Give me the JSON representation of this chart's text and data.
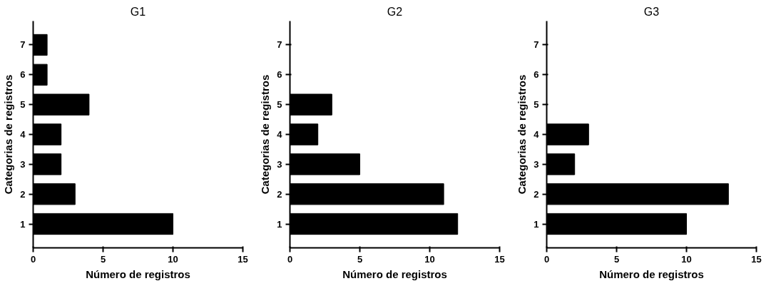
{
  "chart_data": [
    {
      "type": "bar",
      "orientation": "horizontal",
      "title": "G1",
      "xlabel": "Número de registros",
      "ylabel": "Categorias de registros",
      "categories": [
        "7",
        "6",
        "5",
        "4",
        "3",
        "2",
        "1"
      ],
      "values": [
        1,
        1,
        4,
        2,
        2,
        3,
        10
      ],
      "color": "#000000",
      "xlim": [
        0,
        15
      ],
      "xticks": [
        0,
        5,
        10,
        15
      ],
      "grid": false
    },
    {
      "type": "bar",
      "orientation": "horizontal",
      "title": "G2",
      "xlabel": "Número de registros",
      "ylabel": "Categorias de registros",
      "categories": [
        "7",
        "6",
        "5",
        "4",
        "3",
        "2",
        "1"
      ],
      "values": [
        null,
        null,
        3,
        2,
        5,
        11,
        12
      ],
      "color": "#000000",
      "xlim": [
        0,
        15
      ],
      "xticks": [
        0,
        5,
        10,
        15
      ],
      "grid": false
    },
    {
      "type": "bar",
      "orientation": "horizontal",
      "title": "G3",
      "xlabel": "Número de registros",
      "ylabel": "Categorias de registros",
      "categories": [
        "7",
        "6",
        "5",
        "4",
        "3",
        "2",
        "1"
      ],
      "values": [
        null,
        null,
        null,
        3,
        2,
        13,
        10
      ],
      "color": "#000000",
      "xlim": [
        0,
        15
      ],
      "xticks": [
        0,
        5,
        10,
        15
      ],
      "grid": false
    }
  ]
}
